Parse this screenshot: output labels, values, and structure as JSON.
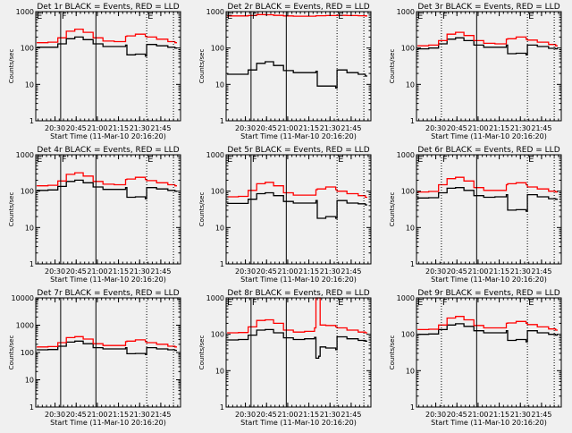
{
  "chart_data": [
    {
      "type": "line",
      "title": "Det 1r BLACK = Events, RED = LLD",
      "xlabel": "Start Time (11-Mar-10 20:16:20)",
      "ylabel": "Counts/sec",
      "yscale": "log",
      "ylim": [
        1,
        1000
      ],
      "yticks": [
        "1",
        "10",
        "100",
        "1000"
      ],
      "xlim": [
        "20:16:20",
        "21:59:00"
      ],
      "xticks": [
        "20:30",
        "20:45",
        "21:00",
        "21:15",
        "21:30",
        "21:45"
      ],
      "x": [
        "20:17",
        "20:25",
        "20:32",
        "20:38",
        "20:44",
        "20:50",
        "20:57",
        "21:04",
        "21:12",
        "21:20",
        "21:21",
        "21:27",
        "21:34",
        "21:35",
        "21:42",
        "21:50",
        "21:55"
      ],
      "series": [
        {
          "name": "Events",
          "color": "#000000",
          "values": [
            105,
            105,
            130,
            180,
            200,
            170,
            130,
            110,
            110,
            120,
            65,
            68,
            60,
            125,
            115,
            105,
            100
          ]
        },
        {
          "name": "LLD",
          "color": "#ff0000",
          "values": [
            140,
            145,
            190,
            290,
            330,
            270,
            190,
            155,
            150,
            210,
            215,
            240,
            210,
            200,
            175,
            150,
            140
          ]
        }
      ],
      "markers": [
        {
          "time": "20:34",
          "label": "F",
          "style": "solid"
        },
        {
          "time": "20:59",
          "label": "",
          "style": "solid"
        },
        {
          "time": "21:35",
          "label": "E",
          "style": "dotted"
        },
        {
          "time": "21:54",
          "label": "",
          "style": "dotted"
        }
      ],
      "start_marker": "E"
    },
    {
      "type": "line",
      "title": "Det 2r BLACK = Events, RED = LLD",
      "xlabel": "Start Time (11-Mar-10 20:16:20)",
      "ylabel": "Counts/sec",
      "yscale": "log",
      "ylim": [
        1,
        1000
      ],
      "yticks": [
        "1",
        "10",
        "100",
        "1000"
      ],
      "xlim": [
        "20:16:20",
        "21:59:00"
      ],
      "xticks": [
        "20:30",
        "20:45",
        "21:00",
        "21:15",
        "21:30",
        "21:45"
      ],
      "x": [
        "20:17",
        "20:25",
        "20:32",
        "20:38",
        "20:44",
        "20:50",
        "20:57",
        "21:04",
        "21:12",
        "21:20",
        "21:21",
        "21:27",
        "21:34",
        "21:35",
        "21:42",
        "21:50",
        "21:55"
      ],
      "series": [
        {
          "name": "Events",
          "color": "#000000",
          "values": [
            19,
            19,
            25,
            38,
            42,
            33,
            24,
            21,
            21,
            23,
            9,
            9,
            8,
            25,
            21,
            19,
            17
          ]
        },
        {
          "name": "LLD",
          "color": "#ff0000",
          "values": [
            760,
            760,
            780,
            830,
            820,
            790,
            760,
            750,
            750,
            770,
            770,
            780,
            780,
            790,
            780,
            770,
            760
          ]
        }
      ],
      "markers": [
        {
          "time": "20:34",
          "label": "F",
          "style": "solid"
        },
        {
          "time": "20:59",
          "label": "",
          "style": "solid"
        },
        {
          "time": "21:35",
          "label": "E",
          "style": "dotted"
        },
        {
          "time": "21:54",
          "label": "",
          "style": "dotted"
        }
      ],
      "start_marker": "E"
    },
    {
      "type": "line",
      "title": "Det 3r BLACK = Events, RED = LLD",
      "xlabel": "Start Time (11-Mar-10 20:16:20)",
      "ylabel": "Counts/sec",
      "yscale": "log",
      "ylim": [
        1,
        1000
      ],
      "yticks": [
        "1",
        "10",
        "100",
        "1000"
      ],
      "xlim": [
        "20:16:20",
        "21:59:00"
      ],
      "xticks": [
        "20:30",
        "20:45",
        "21:00",
        "21:15",
        "21:30",
        "21:45"
      ],
      "x": [
        "20:17",
        "20:25",
        "20:32",
        "20:38",
        "20:44",
        "20:50",
        "20:57",
        "21:04",
        "21:12",
        "21:20",
        "21:21",
        "21:27",
        "21:34",
        "21:35",
        "21:42",
        "21:50",
        "21:55"
      ],
      "series": [
        {
          "name": "Events",
          "color": "#000000",
          "values": [
            95,
            100,
            130,
            175,
            190,
            160,
            120,
            105,
            105,
            120,
            70,
            72,
            65,
            120,
            110,
            98,
            95
          ]
        },
        {
          "name": "LLD",
          "color": "#ff0000",
          "values": [
            115,
            120,
            160,
            240,
            270,
            220,
            160,
            135,
            130,
            175,
            180,
            200,
            175,
            165,
            145,
            125,
            115
          ]
        }
      ],
      "markers": [
        {
          "time": "20:34",
          "label": "F",
          "style": "dotted"
        },
        {
          "time": "20:59",
          "label": "",
          "style": "solid"
        },
        {
          "time": "21:35",
          "label": "E",
          "style": "dotted"
        },
        {
          "time": "21:54",
          "label": "",
          "style": "dotted"
        }
      ],
      "start_marker": "E"
    },
    {
      "type": "line",
      "title": "Det 4r BLACK = Events, RED = LLD",
      "xlabel": "Start Time (11-Mar-10 20:16:20)",
      "ylabel": "Counts/sec",
      "yscale": "log",
      "ylim": [
        1,
        1000
      ],
      "yticks": [
        "1",
        "10",
        "100",
        "1000"
      ],
      "xlim": [
        "20:16:20",
        "21:59:00"
      ],
      "xticks": [
        "20:30",
        "20:45",
        "21:00",
        "21:15",
        "21:30",
        "21:45"
      ],
      "x": [
        "20:17",
        "20:25",
        "20:32",
        "20:38",
        "20:44",
        "20:50",
        "20:57",
        "21:04",
        "21:12",
        "21:20",
        "21:21",
        "21:27",
        "21:34",
        "21:35",
        "21:42",
        "21:50",
        "21:55"
      ],
      "series": [
        {
          "name": "Events",
          "color": "#000000",
          "values": [
            105,
            108,
            135,
            185,
            200,
            170,
            130,
            112,
            112,
            125,
            68,
            70,
            62,
            125,
            115,
            105,
            100
          ]
        },
        {
          "name": "LLD",
          "color": "#ff0000",
          "values": [
            140,
            145,
            190,
            290,
            320,
            260,
            185,
            155,
            150,
            210,
            215,
            240,
            210,
            195,
            170,
            150,
            140
          ]
        }
      ],
      "markers": [
        {
          "time": "20:34",
          "label": "F",
          "style": "solid"
        },
        {
          "time": "20:59",
          "label": "",
          "style": "solid"
        },
        {
          "time": "21:35",
          "label": "E",
          "style": "dotted"
        },
        {
          "time": "21:54",
          "label": "",
          "style": "dotted"
        }
      ],
      "start_marker": "E"
    },
    {
      "type": "line",
      "title": "Det 5r BLACK = Events, RED = LLD",
      "xlabel": "Start Time (11-Mar-10 20:16:20)",
      "ylabel": "Counts/sec",
      "yscale": "log",
      "ylim": [
        1,
        1000
      ],
      "yticks": [
        "1",
        "10",
        "100",
        "1000"
      ],
      "xlim": [
        "20:16:20",
        "21:59:00"
      ],
      "xticks": [
        "20:30",
        "20:45",
        "21:00",
        "21:15",
        "21:30",
        "21:45"
      ],
      "x": [
        "20:17",
        "20:25",
        "20:32",
        "20:38",
        "20:44",
        "20:50",
        "20:57",
        "21:04",
        "21:12",
        "21:20",
        "21:21",
        "21:27",
        "21:34",
        "21:35",
        "21:42",
        "21:50",
        "21:55"
      ],
      "series": [
        {
          "name": "Events",
          "color": "#000000",
          "values": [
            46,
            46,
            60,
            85,
            90,
            75,
            52,
            47,
            47,
            55,
            18,
            20,
            18,
            55,
            47,
            45,
            42
          ]
        },
        {
          "name": "LLD",
          "color": "#ff0000",
          "values": [
            70,
            72,
            105,
            160,
            175,
            140,
            90,
            78,
            78,
            110,
            115,
            130,
            110,
            100,
            85,
            75,
            68
          ]
        }
      ],
      "markers": [
        {
          "time": "20:34",
          "label": "F",
          "style": "solid"
        },
        {
          "time": "20:59",
          "label": "",
          "style": "solid"
        },
        {
          "time": "21:35",
          "label": "E",
          "style": "dotted"
        },
        {
          "time": "21:54",
          "label": "",
          "style": "dotted"
        }
      ],
      "start_marker": "E"
    },
    {
      "type": "line",
      "title": "Det 6r BLACK = Events, RED = LLD",
      "xlabel": "Start Time (11-Mar-10 20:16:20)",
      "ylabel": "Counts/sec",
      "yscale": "log",
      "ylim": [
        1,
        1000
      ],
      "yticks": [
        "1",
        "10",
        "100",
        "1000"
      ],
      "xlim": [
        "20:16:20",
        "21:59:00"
      ],
      "xticks": [
        "20:30",
        "20:45",
        "21:00",
        "21:15",
        "21:30",
        "21:45"
      ],
      "x": [
        "20:17",
        "20:25",
        "20:32",
        "20:38",
        "20:44",
        "20:50",
        "20:57",
        "21:04",
        "21:12",
        "21:20",
        "21:21",
        "21:27",
        "21:34",
        "21:35",
        "21:42",
        "21:50",
        "21:55"
      ],
      "series": [
        {
          "name": "Events",
          "color": "#000000",
          "values": [
            65,
            66,
            90,
            120,
            125,
            105,
            75,
            68,
            70,
            80,
            30,
            31,
            28,
            80,
            70,
            62,
            60
          ]
        },
        {
          "name": "LLD",
          "color": "#ff0000",
          "values": [
            95,
            98,
            150,
            220,
            240,
            190,
            125,
            105,
            105,
            150,
            160,
            170,
            150,
            130,
            115,
            100,
            95
          ]
        }
      ],
      "markers": [
        {
          "time": "20:34",
          "label": "F",
          "style": "dotted"
        },
        {
          "time": "20:59",
          "label": "",
          "style": "solid"
        },
        {
          "time": "21:35",
          "label": "E",
          "style": "dotted"
        },
        {
          "time": "21:54",
          "label": "",
          "style": "dotted"
        }
      ],
      "start_marker": "E"
    },
    {
      "type": "line",
      "title": "Det 7r BLACK = Events, RED = LLD",
      "xlabel": "Start Time (11-Mar-10 20:16:20)",
      "ylabel": "Counts/sec",
      "yscale": "log",
      "ylim": [
        1,
        10000
      ],
      "yticks": [
        "1",
        "10",
        "100",
        "1000",
        "10000"
      ],
      "xlim": [
        "20:16:20",
        "21:59:00"
      ],
      "xticks": [
        "20:30",
        "20:45",
        "21:00",
        "21:15",
        "21:30",
        "21:45"
      ],
      "x": [
        "20:17",
        "20:25",
        "20:32",
        "20:38",
        "20:44",
        "20:50",
        "20:57",
        "21:04",
        "21:12",
        "21:20",
        "21:21",
        "21:27",
        "21:34",
        "21:35",
        "21:42",
        "21:50",
        "21:55"
      ],
      "series": [
        {
          "name": "Events",
          "color": "#000000",
          "values": [
            125,
            128,
            170,
            240,
            260,
            210,
            150,
            135,
            135,
            150,
            90,
            92,
            85,
            150,
            135,
            125,
            120
          ]
        },
        {
          "name": "LLD",
          "color": "#ff0000",
          "values": [
            160,
            165,
            230,
            350,
            380,
            310,
            210,
            180,
            180,
            250,
            260,
            290,
            250,
            230,
            200,
            170,
            160
          ]
        }
      ],
      "markers": [
        {
          "time": "20:34",
          "label": "",
          "style": "solid"
        },
        {
          "time": "20:59",
          "label": "",
          "style": "solid"
        },
        {
          "time": "21:35",
          "label": "",
          "style": "dotted"
        },
        {
          "time": "21:54",
          "label": "",
          "style": "dotted"
        }
      ],
      "start_marker": ""
    },
    {
      "type": "line",
      "title": "Det 8r BLACK = Events, RED = LLD",
      "xlabel": "Start Time (11-Mar-10 20:16:20)",
      "ylabel": "Counts/sec",
      "yscale": "log",
      "ylim": [
        1,
        1000
      ],
      "yticks": [
        "1",
        "10",
        "100",
        "1000"
      ],
      "xlim": [
        "20:16:20",
        "21:59:00"
      ],
      "xticks": [
        "20:30",
        "20:45",
        "21:00",
        "21:15",
        "21:30",
        "21:45"
      ],
      "x": [
        "20:17",
        "20:25",
        "20:32",
        "20:38",
        "20:44",
        "20:50",
        "20:57",
        "21:04",
        "21:12",
        "21:19",
        "21:20",
        "21:22",
        "21:23",
        "21:27",
        "21:34",
        "21:35",
        "21:42",
        "21:50",
        "21:55"
      ],
      "series": [
        {
          "name": "Events",
          "color": "#000000",
          "values": [
            70,
            72,
            95,
            130,
            135,
            110,
            80,
            72,
            75,
            82,
            22,
            25,
            45,
            42,
            38,
            85,
            75,
            68,
            65
          ]
        },
        {
          "name": "LLD",
          "color": "#ff0000",
          "values": [
            110,
            112,
            160,
            240,
            250,
            200,
            130,
            115,
            120,
            150,
            1000,
            1000,
            180,
            175,
            160,
            150,
            130,
            115,
            110
          ]
        }
      ],
      "markers": [
        {
          "time": "20:34",
          "label": "F",
          "style": "solid"
        },
        {
          "time": "20:59",
          "label": "",
          "style": "solid"
        },
        {
          "time": "21:35",
          "label": "E",
          "style": "dotted"
        },
        {
          "time": "21:54",
          "label": "",
          "style": "dotted"
        }
      ],
      "start_marker": "E"
    },
    {
      "type": "line",
      "title": "Det 9r BLACK = Events, RED = LLD",
      "xlabel": "Start Time (11-Mar-10 20:16:20)",
      "ylabel": "Counts/sec",
      "yscale": "log",
      "ylim": [
        1,
        1000
      ],
      "yticks": [
        "1",
        "10",
        "100",
        "1000"
      ],
      "xlim": [
        "20:16:20",
        "21:59:00"
      ],
      "xticks": [
        "20:30",
        "20:45",
        "21:00",
        "21:15",
        "21:30",
        "21:45"
      ],
      "x": [
        "20:17",
        "20:25",
        "20:32",
        "20:38",
        "20:44",
        "20:50",
        "20:57",
        "21:04",
        "21:12",
        "21:20",
        "21:21",
        "21:27",
        "21:34",
        "21:35",
        "21:42",
        "21:50",
        "21:55"
      ],
      "series": [
        {
          "name": "Events",
          "color": "#000000",
          "values": [
            100,
            102,
            135,
            180,
            195,
            165,
            125,
            110,
            110,
            125,
            68,
            72,
            62,
            125,
            110,
            100,
            95
          ]
        },
        {
          "name": "LLD",
          "color": "#ff0000",
          "values": [
            135,
            138,
            180,
            280,
            310,
            250,
            175,
            150,
            150,
            200,
            205,
            225,
            200,
            185,
            160,
            140,
            130
          ]
        }
      ],
      "markers": [
        {
          "time": "20:34",
          "label": "F",
          "style": "dotted"
        },
        {
          "time": "20:59",
          "label": "",
          "style": "solid"
        },
        {
          "time": "21:35",
          "label": "E",
          "style": "dotted"
        },
        {
          "time": "21:54",
          "label": "",
          "style": "dotted"
        }
      ],
      "start_marker": "E"
    }
  ]
}
